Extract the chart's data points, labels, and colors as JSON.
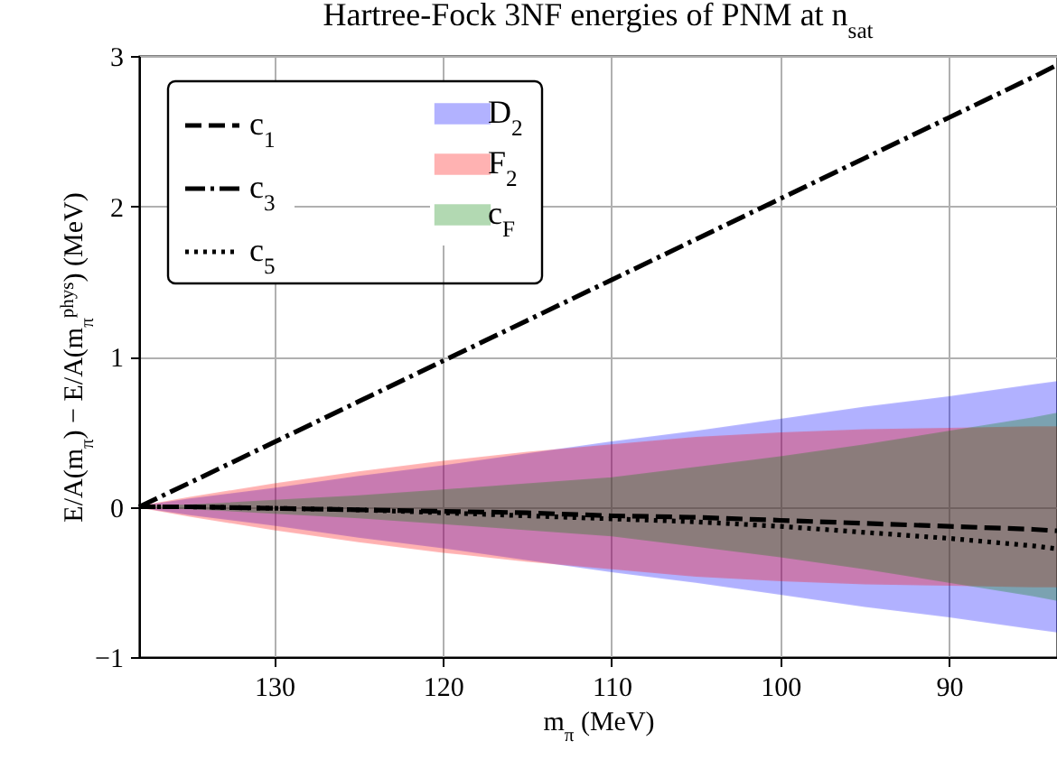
{
  "chart_data": {
    "type": "line",
    "title": "Hartree-Fock 3NF energies of PNM at n$_{sat}$",
    "xlabel": "m$_{π}$ (MeV)",
    "ylabel": "E/A(m$_{π}$) − E/A(m$_{π}$$^{phys}$) (MeV)",
    "xlim": [
      138,
      83.6
    ],
    "ylim": [
      -1,
      3
    ],
    "xticks": [
      130,
      120,
      110,
      100,
      90
    ],
    "yticks": [
      -1,
      0,
      1,
      2,
      3
    ],
    "grid": true,
    "legend": "top left",
    "x": [
      138,
      135,
      130,
      125,
      120,
      115,
      110,
      105,
      100,
      95,
      90,
      85,
      83.6
    ],
    "series": [
      {
        "name": "c$_{1}$",
        "type": "line",
        "line_style": "dashed",
        "color": "#000000",
        "values": [
          0,
          0,
          -0.01,
          -0.02,
          -0.03,
          -0.04,
          -0.06,
          -0.07,
          -0.09,
          -0.11,
          -0.13,
          -0.15,
          -0.16
        ]
      },
      {
        "name": "c$_{3}$",
        "type": "line",
        "line_style": "dashdot",
        "color": "#000000",
        "values": [
          0,
          0.16,
          0.43,
          0.7,
          0.97,
          1.24,
          1.51,
          1.78,
          2.05,
          2.32,
          2.59,
          2.86,
          2.94
        ]
      },
      {
        "name": "c$_{5}$",
        "type": "line",
        "line_style": "dotted",
        "color": "#000000",
        "values": [
          0,
          0,
          -0.01,
          -0.02,
          -0.04,
          -0.06,
          -0.08,
          -0.1,
          -0.13,
          -0.17,
          -0.21,
          -0.26,
          -0.28
        ]
      },
      {
        "name": "D$_{2}$",
        "type": "area",
        "color": "#0000ff",
        "values": [
          null,
          null,
          null,
          null,
          null,
          null,
          null,
          null,
          null,
          null,
          null,
          null,
          null
        ],
        "upper": [
          0,
          0.05,
          0.12,
          0.2,
          0.27,
          0.35,
          0.43,
          0.5,
          0.58,
          0.66,
          0.73,
          0.81,
          0.83
        ],
        "lower": [
          0,
          -0.05,
          -0.12,
          -0.2,
          -0.27,
          -0.35,
          -0.43,
          -0.5,
          -0.58,
          -0.66,
          -0.73,
          -0.81,
          -0.83
        ]
      },
      {
        "name": "F$_{2}$",
        "type": "area",
        "color": "#ff0000",
        "values": [
          null,
          null,
          null,
          null,
          null,
          null,
          null,
          null,
          null,
          null,
          null,
          null,
          null
        ],
        "upper": [
          0,
          0.06,
          0.15,
          0.23,
          0.3,
          0.36,
          0.41,
          0.46,
          0.49,
          0.51,
          0.52,
          0.53,
          0.53
        ],
        "lower": [
          0,
          -0.06,
          -0.15,
          -0.23,
          -0.3,
          -0.36,
          -0.41,
          -0.46,
          -0.49,
          -0.51,
          -0.52,
          -0.53,
          -0.53
        ]
      },
      {
        "name": "c$_{F}$",
        "type": "area",
        "color": "#008000",
        "values": [
          null,
          null,
          null,
          null,
          null,
          null,
          null,
          null,
          null,
          null,
          null,
          null,
          null
        ],
        "upper": [
          0,
          0.01,
          0.04,
          0.07,
          0.11,
          0.15,
          0.19,
          0.26,
          0.33,
          0.41,
          0.5,
          0.59,
          0.62
        ],
        "lower": [
          0,
          -0.01,
          -0.04,
          -0.07,
          -0.11,
          -0.15,
          -0.19,
          -0.26,
          -0.33,
          -0.41,
          -0.5,
          -0.59,
          -0.62
        ]
      }
    ]
  }
}
